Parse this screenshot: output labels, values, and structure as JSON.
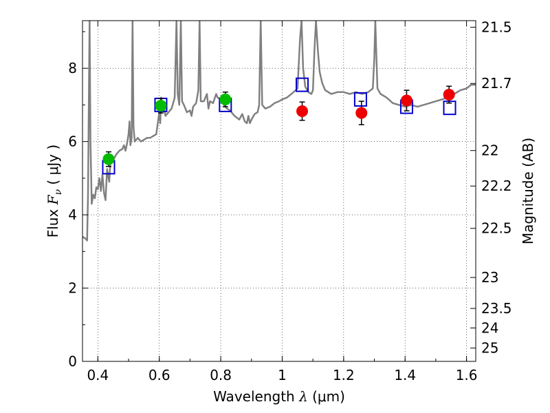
{
  "chart_data": {
    "type": "scatter",
    "xlabel": "Wavelength  λ (μm)",
    "ylabel": "Flux  F_ν  ( μJy )",
    "ylabel_parts": {
      "pre": "Flux  ",
      "var": "F",
      "sub": "ν",
      "open": "  ( ",
      "unit": "μJy",
      "close": " )"
    },
    "xlabel_parts": {
      "pre": "Wavelength  ",
      "var": "λ",
      "unit": " (μm)"
    },
    "y2label": "Magnitude (AB)",
    "xlim": [
      0.35,
      1.63
    ],
    "ylim": [
      0,
      9.3
    ],
    "grid": true,
    "x_ticks": [
      {
        "v": 0.4,
        "label": "0.4"
      },
      {
        "v": 0.6,
        "label": "0.6"
      },
      {
        "v": 0.8,
        "label": "0.8"
      },
      {
        "v": 1.0,
        "label": "1"
      },
      {
        "v": 1.2,
        "label": "1.2"
      },
      {
        "v": 1.4,
        "label": "1.4"
      },
      {
        "v": 1.6,
        "label": "1.6"
      }
    ],
    "y_ticks": [
      {
        "v": 0,
        "label": "0"
      },
      {
        "v": 2,
        "label": "2"
      },
      {
        "v": 4,
        "label": "4"
      },
      {
        "v": 6,
        "label": "6"
      },
      {
        "v": 8,
        "label": "8"
      }
    ],
    "y2_ticks": [
      {
        "mag": 21.5,
        "label": "21.5"
      },
      {
        "mag": 21.7,
        "label": "21.7"
      },
      {
        "mag": 22,
        "label": "22"
      },
      {
        "mag": 22.2,
        "label": "22.2"
      },
      {
        "mag": 22.5,
        "label": "22.5"
      },
      {
        "mag": 23,
        "label": "23"
      },
      {
        "mag": 23.5,
        "label": "23.5"
      },
      {
        "mag": 24,
        "label": "24"
      },
      {
        "mag": 25,
        "label": "25"
      }
    ],
    "series": [
      {
        "kind": "line",
        "color": "#808080",
        "points": [
          [
            0.35,
            3.4
          ],
          [
            0.36,
            3.35
          ],
          [
            0.365,
            3.3
          ],
          [
            0.368,
            4.5
          ],
          [
            0.371,
            7.5
          ],
          [
            0.373,
            9.3
          ],
          [
            0.376,
            6.0
          ],
          [
            0.38,
            4.3
          ],
          [
            0.385,
            4.55
          ],
          [
            0.39,
            4.45
          ],
          [
            0.395,
            4.75
          ],
          [
            0.4,
            4.7
          ],
          [
            0.405,
            5.0
          ],
          [
            0.41,
            4.65
          ],
          [
            0.415,
            5.1
          ],
          [
            0.42,
            4.6
          ],
          [
            0.425,
            4.4
          ],
          [
            0.43,
            5.25
          ],
          [
            0.434,
            5.05
          ],
          [
            0.437,
            4.9
          ],
          [
            0.442,
            5.6
          ],
          [
            0.45,
            5.5
          ],
          [
            0.46,
            5.65
          ],
          [
            0.47,
            5.75
          ],
          [
            0.48,
            5.8
          ],
          [
            0.485,
            5.9
          ],
          [
            0.49,
            5.75
          ],
          [
            0.495,
            5.95
          ],
          [
            0.5,
            6.2
          ],
          [
            0.503,
            6.55
          ],
          [
            0.506,
            5.9
          ],
          [
            0.51,
            6.1
          ],
          [
            0.513,
            9.3
          ],
          [
            0.516,
            6.4
          ],
          [
            0.52,
            6.0
          ],
          [
            0.53,
            6.1
          ],
          [
            0.54,
            6.0
          ],
          [
            0.55,
            6.05
          ],
          [
            0.56,
            6.1
          ],
          [
            0.57,
            6.1
          ],
          [
            0.58,
            6.15
          ],
          [
            0.59,
            6.2
          ],
          [
            0.6,
            6.8
          ],
          [
            0.603,
            6.5
          ],
          [
            0.606,
            7.2
          ],
          [
            0.61,
            6.85
          ],
          [
            0.615,
            6.95
          ],
          [
            0.62,
            6.7
          ],
          [
            0.63,
            6.8
          ],
          [
            0.64,
            6.9
          ],
          [
            0.65,
            7.2
          ],
          [
            0.656,
            9.3
          ],
          [
            0.66,
            7.3
          ],
          [
            0.665,
            7.0
          ],
          [
            0.67,
            9.3
          ],
          [
            0.674,
            7.1
          ],
          [
            0.68,
            7.0
          ],
          [
            0.69,
            6.8
          ],
          [
            0.7,
            6.85
          ],
          [
            0.705,
            6.7
          ],
          [
            0.71,
            6.95
          ],
          [
            0.72,
            7.05
          ],
          [
            0.727,
            7.4
          ],
          [
            0.731,
            9.3
          ],
          [
            0.735,
            7.1
          ],
          [
            0.745,
            7.1
          ],
          [
            0.755,
            7.3
          ],
          [
            0.76,
            6.9
          ],
          [
            0.765,
            7.1
          ],
          [
            0.775,
            7.05
          ],
          [
            0.785,
            7.3
          ],
          [
            0.79,
            7.2
          ],
          [
            0.8,
            7.15
          ],
          [
            0.81,
            7.0
          ],
          [
            0.82,
            6.9
          ],
          [
            0.83,
            6.85
          ],
          [
            0.845,
            6.7
          ],
          [
            0.86,
            6.6
          ],
          [
            0.87,
            6.75
          ],
          [
            0.878,
            6.55
          ],
          [
            0.885,
            6.5
          ],
          [
            0.89,
            6.7
          ],
          [
            0.895,
            6.5
          ],
          [
            0.9,
            6.6
          ],
          [
            0.91,
            6.75
          ],
          [
            0.92,
            6.8
          ],
          [
            0.925,
            7.0
          ],
          [
            0.93,
            9.3
          ],
          [
            0.935,
            7.0
          ],
          [
            0.945,
            6.9
          ],
          [
            0.96,
            6.95
          ],
          [
            0.975,
            7.05
          ],
          [
            0.99,
            7.1
          ],
          [
            1.0,
            7.15
          ],
          [
            1.015,
            7.2
          ],
          [
            1.03,
            7.3
          ],
          [
            1.05,
            7.45
          ],
          [
            1.058,
            8.8
          ],
          [
            1.063,
            9.3
          ],
          [
            1.068,
            8.0
          ],
          [
            1.075,
            7.5
          ],
          [
            1.085,
            7.35
          ],
          [
            1.095,
            7.3
          ],
          [
            1.1,
            7.4
          ],
          [
            1.105,
            8.5
          ],
          [
            1.11,
            9.3
          ],
          [
            1.116,
            8.5
          ],
          [
            1.122,
            7.9
          ],
          [
            1.13,
            7.6
          ],
          [
            1.14,
            7.4
          ],
          [
            1.16,
            7.3
          ],
          [
            1.18,
            7.35
          ],
          [
            1.2,
            7.35
          ],
          [
            1.22,
            7.3
          ],
          [
            1.24,
            7.35
          ],
          [
            1.26,
            7.3
          ],
          [
            1.28,
            7.35
          ],
          [
            1.295,
            7.45
          ],
          [
            1.3,
            8.3
          ],
          [
            1.303,
            9.3
          ],
          [
            1.306,
            8.5
          ],
          [
            1.31,
            7.45
          ],
          [
            1.32,
            7.3
          ],
          [
            1.34,
            7.2
          ],
          [
            1.36,
            7.05
          ],
          [
            1.38,
            7.0
          ],
          [
            1.4,
            6.95
          ],
          [
            1.42,
            7.0
          ],
          [
            1.44,
            6.95
          ],
          [
            1.46,
            7.0
          ],
          [
            1.48,
            7.05
          ],
          [
            1.5,
            7.1
          ],
          [
            1.52,
            7.15
          ],
          [
            1.54,
            7.2
          ],
          [
            1.56,
            7.3
          ],
          [
            1.58,
            7.4
          ],
          [
            1.6,
            7.45
          ],
          [
            1.615,
            7.55
          ],
          [
            1.63,
            7.55
          ]
        ]
      },
      {
        "kind": "open-square",
        "color": "#0000cc",
        "points": [
          [
            0.435,
            5.3
          ],
          [
            0.605,
            7.0
          ],
          [
            0.815,
            7.0
          ],
          [
            1.065,
            7.55
          ],
          [
            1.255,
            7.15
          ],
          [
            1.405,
            6.95
          ],
          [
            1.545,
            6.92
          ]
        ]
      },
      {
        "kind": "filled-circle",
        "color": "#00bb00",
        "points": [
          [
            0.435,
            5.52,
            0.2
          ],
          [
            0.605,
            6.98,
            0.2
          ],
          [
            0.815,
            7.15,
            0.2
          ]
        ]
      },
      {
        "kind": "filled-circle",
        "color": "#ee0000",
        "points": [
          [
            1.065,
            6.83,
            0.25
          ],
          [
            1.258,
            6.78,
            0.32
          ],
          [
            1.405,
            7.12,
            0.28
          ],
          [
            1.543,
            7.28,
            0.23
          ]
        ]
      }
    ]
  }
}
